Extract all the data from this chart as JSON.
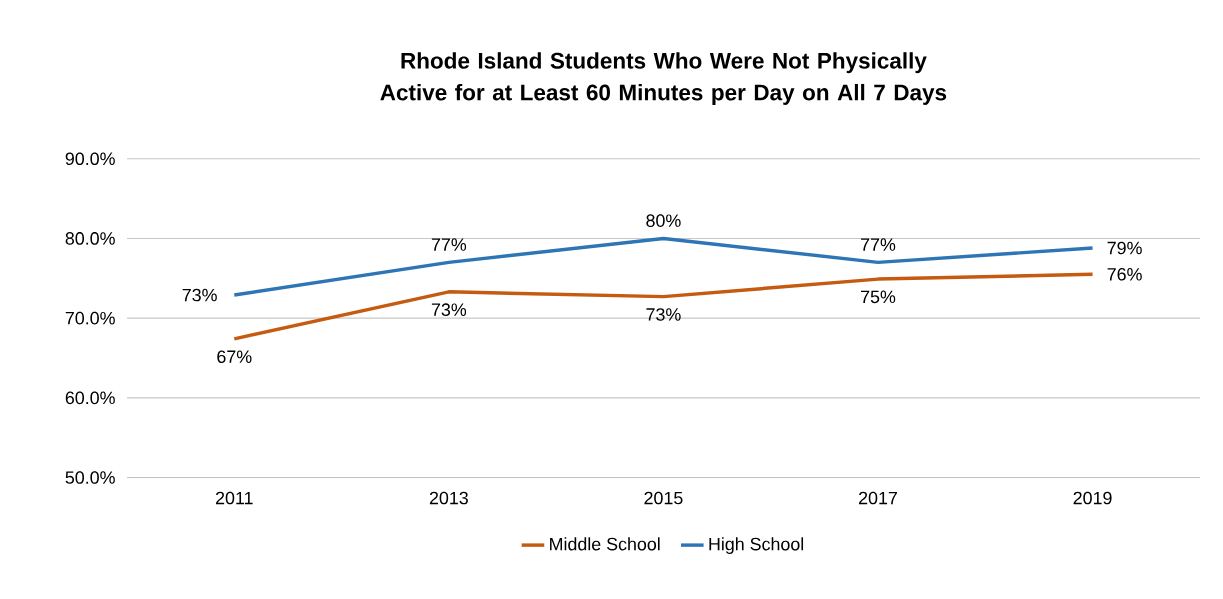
{
  "chart_data": {
    "type": "line",
    "title": "Rhode Island Students Who Were Not Physically Active for at Least 60 Minutes per Day on All 7 Days",
    "categories": [
      "2011",
      "2013",
      "2015",
      "2017",
      "2019"
    ],
    "series": [
      {
        "name": "Middle School",
        "color": "#c55a11",
        "values": [
          67.4,
          73.3,
          72.7,
          74.9,
          75.5
        ],
        "value_labels": [
          "67%",
          "73%",
          "73%",
          "75%",
          "76%"
        ]
      },
      {
        "name": "High School",
        "color": "#2e75b6",
        "values": [
          72.9,
          77.0,
          80.0,
          77.0,
          78.8
        ],
        "value_labels": [
          "73%",
          "77%",
          "80%",
          "77%",
          "79%"
        ]
      }
    ],
    "ylim": [
      50,
      90
    ],
    "yticks": [
      {
        "value": 50,
        "label": "50.0%"
      },
      {
        "value": 60,
        "label": "60.0%"
      },
      {
        "value": 70,
        "label": "70.0%"
      },
      {
        "value": 80,
        "label": "80.0%"
      },
      {
        "value": 90,
        "label": "90.0%"
      }
    ],
    "grid": "y",
    "legend": "bottom",
    "marker": "none",
    "line_style": "solid"
  }
}
